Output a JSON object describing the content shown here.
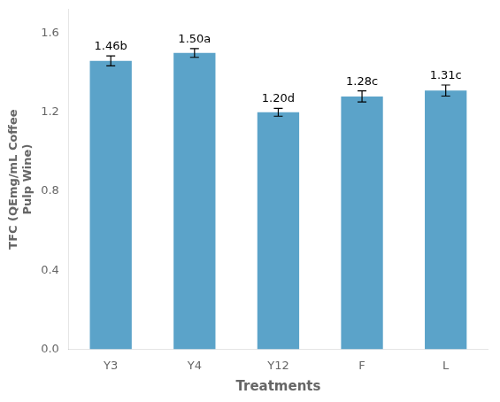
{
  "chart_data": {
    "type": "bar",
    "categories": [
      "Y3",
      "Y4",
      "Y12",
      "F",
      "L"
    ],
    "values": [
      1.46,
      1.5,
      1.2,
      1.28,
      1.31
    ],
    "errors": [
      0.025,
      0.022,
      0.02,
      0.028,
      0.028
    ],
    "value_labels": [
      "1.46b",
      "1.50a",
      "1.20d",
      "1.28c",
      "1.31c"
    ],
    "data_labels": true,
    "color": "#5BA3C9",
    "xlabel": "Treatments",
    "ylabel": "TFC (QEmg/mL Coffee\nPulp Wine)",
    "ylim": [
      0,
      1.72
    ],
    "yticks": [
      {
        "value": 0.0,
        "label": "0.0"
      },
      0.4,
      0.8,
      1.2,
      1.6
    ],
    "grid": false
  }
}
